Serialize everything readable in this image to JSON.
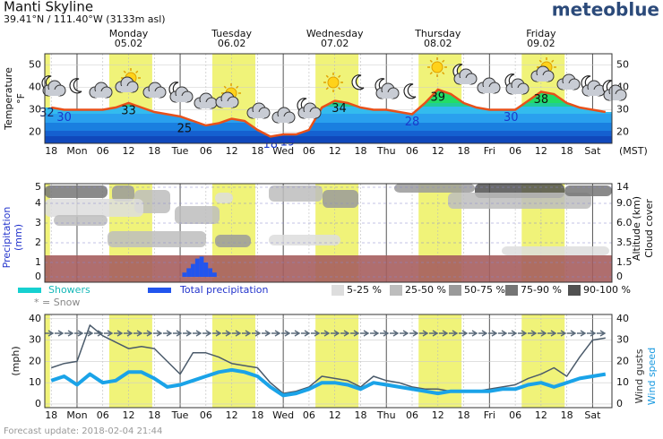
{
  "header": {
    "title": "Manti Skyline",
    "subtitle": "39.41°N / 111.40°W (3133m asl)",
    "brand": "meteoblue"
  },
  "footer": "Forecast update: 2018-02-04 21:44",
  "chart_data": [
    {
      "type": "line",
      "ylabel": "Temperature",
      "yunit": "°F",
      "timezone": "(MST)",
      "xlim": [
        -1.5,
        130.5
      ],
      "xticks": [
        {
          "value": 0,
          "label": "18"
        },
        {
          "value": 6,
          "label": "Mon"
        },
        {
          "value": 12,
          "label": "06"
        },
        {
          "value": 18,
          "label": "12"
        },
        {
          "value": 24,
          "label": "18"
        },
        {
          "value": 30,
          "label": "Tue"
        },
        {
          "value": 36,
          "label": "06"
        },
        {
          "value": 42,
          "label": "12"
        },
        {
          "value": 48,
          "label": "18"
        },
        {
          "value": 54,
          "label": "Wed"
        },
        {
          "value": 60,
          "label": "06"
        },
        {
          "value": 66,
          "label": "12"
        },
        {
          "value": 72,
          "label": "18"
        },
        {
          "value": 78,
          "label": "Thu"
        },
        {
          "value": 84,
          "label": "06"
        },
        {
          "value": 90,
          "label": "12"
        },
        {
          "value": 96,
          "label": "18"
        },
        {
          "value": 102,
          "label": "Fri"
        },
        {
          "value": 108,
          "label": "06"
        },
        {
          "value": 114,
          "label": "12"
        },
        {
          "value": 120,
          "label": "18"
        },
        {
          "value": 126,
          "label": "Sat"
        }
      ],
      "day_labels": [
        {
          "x": 18,
          "day": "Monday",
          "date": "05.02"
        },
        {
          "x": 42,
          "day": "Tuesday",
          "date": "06.02"
        },
        {
          "x": 66,
          "day": "Wednesday",
          "date": "07.02"
        },
        {
          "x": 90,
          "day": "Thursday",
          "date": "08.02"
        },
        {
          "x": 114,
          "day": "Friday",
          "date": "09.02"
        }
      ],
      "ylim": [
        15,
        55
      ],
      "yticks": [
        20,
        30,
        40,
        50
      ],
      "grid": true,
      "x": [
        0,
        3,
        6,
        9,
        12,
        15,
        18,
        21,
        24,
        27,
        30,
        33,
        36,
        39,
        42,
        45,
        48,
        51,
        54,
        57,
        60,
        63,
        66,
        69,
        72,
        75,
        78,
        81,
        84,
        87,
        90,
        93,
        96,
        99,
        102,
        105,
        108,
        111,
        114,
        117,
        120,
        123,
        126,
        129
      ],
      "series": [
        {
          "color": "#e8501a",
          "values": [
            31,
            30,
            30,
            30,
            30,
            31,
            33,
            31,
            29,
            28,
            27,
            25,
            23,
            24,
            26,
            25,
            21,
            18,
            19,
            19,
            21,
            31,
            34,
            33,
            31,
            30,
            30,
            29,
            28,
            33,
            39,
            37,
            33,
            31,
            30,
            30,
            30,
            34,
            38,
            37,
            33,
            31,
            30,
            29
          ]
        }
      ],
      "labels": [
        {
          "x": -1,
          "value": 32,
          "color": "#1a2a66"
        },
        {
          "x": 3,
          "value": 30,
          "color": "#1a3acc"
        },
        {
          "x": 18,
          "value": 33,
          "color": "#111111"
        },
        {
          "x": 31,
          "value": 25,
          "color": "#111111"
        },
        {
          "x": 51,
          "value": 18,
          "color": "#1a3acc"
        },
        {
          "x": 55,
          "value": 19,
          "color": "#1a3acc"
        },
        {
          "x": 67,
          "value": 34,
          "color": "#111111"
        },
        {
          "x": 84,
          "value": 28,
          "color": "#1a3acc"
        },
        {
          "x": 90,
          "value": 39,
          "color": "#111111"
        },
        {
          "x": 107,
          "value": 30,
          "color": "#1a3acc"
        },
        {
          "x": 114,
          "value": 38,
          "color": "#111111"
        }
      ]
    },
    {
      "type": "bar",
      "ylabel": "Precipitation",
      "yunit": "(mm)",
      "y2label": "Altitude (km)",
      "y3label": "Cloud cover",
      "xlim": [
        -1.5,
        130.5
      ],
      "ylim": [
        0,
        5
      ],
      "yticks": [
        0,
        1,
        2,
        3,
        4,
        5
      ],
      "y2lim": [
        0,
        14
      ],
      "y2ticks": [
        0,
        1.5,
        3.5,
        {
          "value": 6,
          "label": "6.0"
        },
        {
          "value": 9,
          "label": "9.0"
        },
        14
      ],
      "series": [
        {
          "name": "Total precipitation",
          "color": "#2255ee",
          "x": [
            31,
            32,
            33,
            34,
            35,
            36,
            37,
            38
          ],
          "values": [
            0.3,
            0.6,
            0.9,
            1.2,
            1.3,
            1.0,
            0.6,
            0.3
          ]
        }
      ],
      "legend": [
        {
          "name": "Showers",
          "color": "#16d0d0"
        },
        {
          "name": "Total precipitation",
          "color": "#2255ee"
        }
      ],
      "snow_note": "* = Snow",
      "cloud_legend": [
        {
          "label": "5-25 %",
          "color": "#dddddd"
        },
        {
          "label": "25-50 %",
          "color": "#bdbdbd"
        },
        {
          "label": "50-75 %",
          "color": "#9a9a9a"
        },
        {
          "label": "75-90 %",
          "color": "#757575"
        },
        {
          "label": "90-100 %",
          "color": "#505050"
        }
      ]
    },
    {
      "type": "line",
      "ylabel": "(mph)",
      "xlim": [
        -1.5,
        130.5
      ],
      "xticks": [
        {
          "value": 0,
          "label": "18"
        },
        {
          "value": 6,
          "label": "Mon"
        },
        {
          "value": 12,
          "label": "06"
        },
        {
          "value": 18,
          "label": "12"
        },
        {
          "value": 24,
          "label": "18"
        },
        {
          "value": 30,
          "label": "Tue"
        },
        {
          "value": 36,
          "label": "06"
        },
        {
          "value": 42,
          "label": "12"
        },
        {
          "value": 48,
          "label": "18"
        },
        {
          "value": 54,
          "label": "Wed"
        },
        {
          "value": 60,
          "label": "06"
        },
        {
          "value": 66,
          "label": "12"
        },
        {
          "value": 72,
          "label": "18"
        },
        {
          "value": 78,
          "label": "Thu"
        },
        {
          "value": 84,
          "label": "06"
        },
        {
          "value": 90,
          "label": "12"
        },
        {
          "value": 96,
          "label": "18"
        },
        {
          "value": 102,
          "label": "Fri"
        },
        {
          "value": 108,
          "label": "06"
        },
        {
          "value": 114,
          "label": "12"
        },
        {
          "value": 120,
          "label": "18"
        },
        {
          "value": 126,
          "label": "Sat"
        }
      ],
      "ylim": [
        -1.7,
        42
      ],
      "yticks": [
        0,
        10,
        20,
        30,
        40
      ],
      "grid": true,
      "x": [
        0,
        3,
        6,
        9,
        12,
        15,
        18,
        21,
        24,
        27,
        30,
        33,
        36,
        39,
        42,
        45,
        48,
        51,
        54,
        57,
        60,
        63,
        66,
        69,
        72,
        75,
        78,
        81,
        84,
        87,
        90,
        93,
        96,
        99,
        102,
        105,
        108,
        111,
        114,
        117,
        120,
        123,
        126,
        129
      ],
      "series": [
        {
          "name": "Wind gusts",
          "color": "#4a5a6a",
          "width": 1.5,
          "values": [
            17,
            19,
            20,
            37,
            32,
            29,
            26,
            27,
            26,
            20,
            14,
            24,
            24,
            22,
            19,
            18,
            17,
            10,
            5,
            6,
            8,
            13,
            12,
            11,
            8,
            13,
            11,
            10,
            8,
            7,
            7,
            6,
            6,
            6,
            7,
            8,
            9,
            12,
            14,
            17,
            13,
            22,
            30,
            31
          ]
        },
        {
          "name": "Wind speed",
          "color": "#1aa3e8",
          "width": 4,
          "values": [
            11,
            13,
            9,
            14,
            10,
            11,
            15,
            15,
            12,
            8,
            9,
            11,
            13,
            15,
            16,
            15,
            13,
            8,
            4,
            5,
            7,
            10,
            10,
            9,
            7,
            10,
            9,
            8,
            7,
            6,
            5,
            6,
            6,
            6,
            6,
            7,
            7,
            9,
            10,
            8,
            10,
            12,
            13,
            14
          ]
        }
      ]
    }
  ]
}
